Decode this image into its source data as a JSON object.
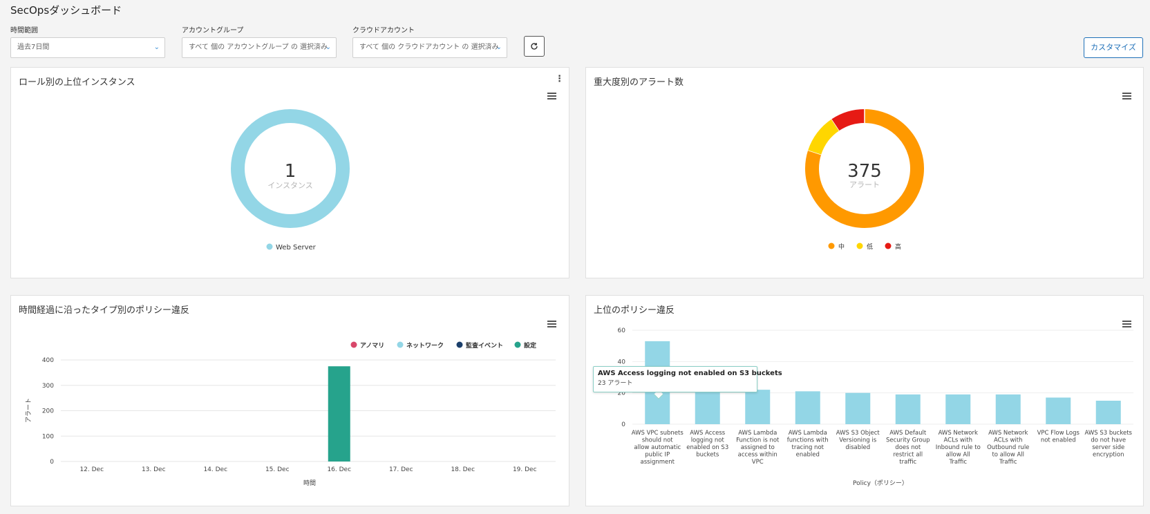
{
  "page": {
    "title": "SecOpsダッシュボード"
  },
  "filters": {
    "time_range": {
      "label": "時間範囲",
      "value": "過去7日間"
    },
    "account_group": {
      "label": "アカウントグループ",
      "value": "すべて 個の アカウントグループ の 選択済み"
    },
    "cloud_account": {
      "label": "クラウドアカウント",
      "value": "すべて 個の クラウドアカウント の 選択済み"
    },
    "refresh_icon": "refresh-icon"
  },
  "customize_label": "カスタマイズ",
  "colors": {
    "web_server": "#93d6e6",
    "medium": "#ff9900",
    "low": "#ffd600",
    "high": "#e61a14",
    "anomaly": "#d8476a",
    "network": "#93d6e6",
    "audit": "#1b3f6b",
    "config": "#26a38c",
    "bar": "#93d6e6"
  },
  "panels": {
    "instances": {
      "title": "ロール別の上位インスタンス",
      "center_value": "1",
      "center_label": "インスタンス",
      "chart_data": {
        "type": "pie",
        "slices": [
          {
            "name": "Web Server",
            "value": 1
          }
        ]
      }
    },
    "alerts": {
      "title": "重大度別のアラート数",
      "center_value": "375",
      "center_label": "アラート",
      "chart_data": {
        "type": "pie",
        "slices": [
          {
            "name": "中",
            "value": 300
          },
          {
            "name": "低",
            "value": 40
          },
          {
            "name": "高",
            "value": 35
          }
        ]
      }
    },
    "violations_time": {
      "title": "時間経過に沿ったタイプ別のポリシー違反",
      "chart_data": {
        "type": "bar",
        "categories": [
          "12. Dec",
          "13. Dec",
          "14. Dec",
          "15. Dec",
          "16. Dec",
          "17. Dec",
          "18. Dec",
          "19. Dec"
        ],
        "series": [
          {
            "name": "アノマリ",
            "values": [
              0,
              0,
              0,
              0,
              0,
              0,
              0,
              0
            ]
          },
          {
            "name": "ネットワーク",
            "values": [
              0,
              0,
              0,
              0,
              0,
              0,
              0,
              0
            ]
          },
          {
            "name": "監査イベント",
            "values": [
              0,
              0,
              0,
              0,
              0,
              0,
              0,
              0
            ]
          },
          {
            "name": "設定",
            "values": [
              0,
              0,
              0,
              0,
              375,
              0,
              0,
              0
            ]
          }
        ],
        "xlabel": "時間",
        "ylabel": "アラート",
        "yticks": [
          "0",
          "100",
          "200",
          "300",
          "400"
        ],
        "ylim": [
          0,
          400
        ],
        "legend": "top-right",
        "grid": true
      }
    },
    "top_violations": {
      "title": "上位のポリシー違反",
      "chart_data": {
        "type": "bar",
        "categories": [
          "AWS VPC subnets should not allow automatic public IP assignment",
          "AWS Access logging not enabled on S3 buckets",
          "AWS Lambda Function is not assigned to access within VPC",
          "AWS Lambda functions with tracing not enabled",
          "AWS S3 Object Versioning is disabled",
          "AWS Default Security Group does not restrict all traffic",
          "AWS Network ACLs with Inbound rule to allow All Traffic",
          "AWS Network ACLs with Outbound rule to allow All Traffic",
          "VPC Flow Logs not enabled",
          "AWS S3 buckets do not have server side encryption"
        ],
        "values": [
          53,
          23,
          22,
          21,
          20,
          19,
          19,
          19,
          17,
          15
        ],
        "xlabel": "Policy（ポリシー）",
        "yticks": [
          "0",
          "20",
          "40",
          "60"
        ],
        "ylim": [
          0,
          60
        ],
        "grid": true
      },
      "tooltip": {
        "title": "AWS Access logging not enabled on S3 buckets",
        "value": "23 アラート"
      }
    }
  }
}
